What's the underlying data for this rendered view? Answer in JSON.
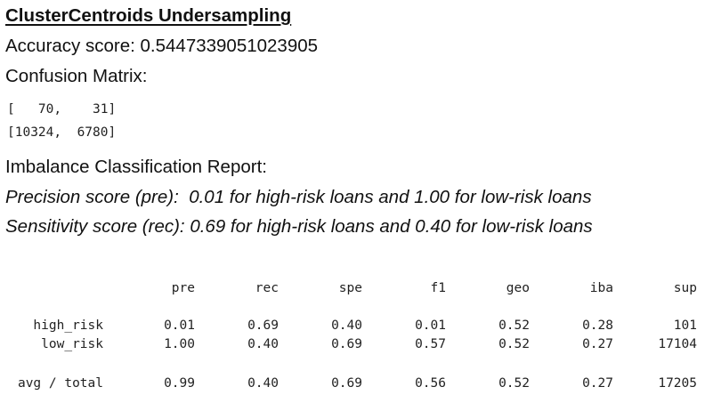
{
  "title": "ClusterCentroids Undersampling",
  "accuracy_line": "Accuracy score: 0.5447339051023905",
  "confusion_matrix_label": "Confusion Matrix:",
  "confusion_matrix": {
    "row_0": "[   70,    31]",
    "row_1": "[10324,  6780]"
  },
  "report_label": "Imbalance Classification Report:",
  "precision_line": "Precision score (pre):  0.01 for high-risk loans and 1.00 for low-risk loans",
  "sensitivity_line": "Sensitivity score (rec): 0.69 for high-risk loans and 0.40 for low-risk loans",
  "report_table": {
    "headers": [
      "pre",
      "rec",
      "spe",
      "f1",
      "geo",
      "iba",
      "sup"
    ],
    "rows": [
      {
        "label": "high_risk",
        "values": [
          "0.01",
          "0.69",
          "0.40",
          "0.01",
          "0.52",
          "0.28",
          "101"
        ]
      },
      {
        "label": "low_risk",
        "values": [
          "1.00",
          "0.40",
          "0.69",
          "0.57",
          "0.52",
          "0.27",
          "17104"
        ]
      },
      {
        "label": "avg / total",
        "values": [
          "0.99",
          "0.40",
          "0.69",
          "0.56",
          "0.52",
          "0.27",
          "17205"
        ]
      }
    ]
  }
}
